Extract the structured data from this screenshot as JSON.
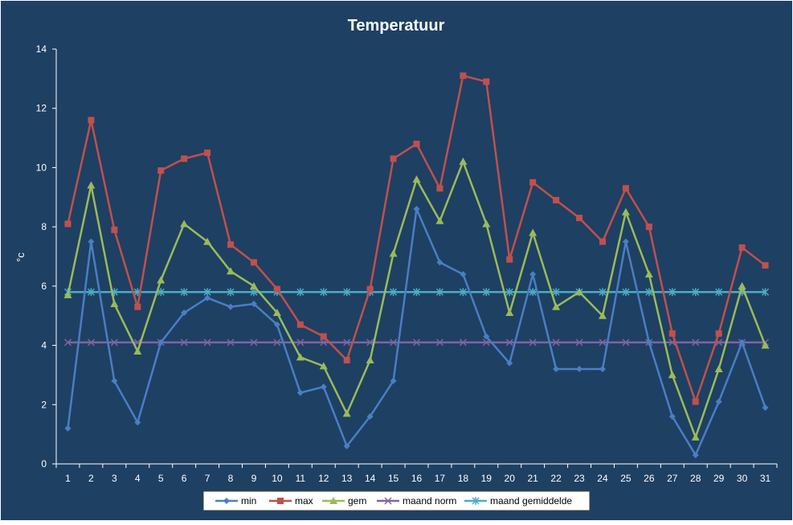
{
  "chart_data": {
    "type": "line",
    "title": "Temperatuur",
    "xlabel": "",
    "ylabel": "°c",
    "ylim": [
      0,
      14
    ],
    "yticks": [
      0,
      2,
      4,
      6,
      8,
      10,
      12,
      14
    ],
    "categories": [
      "1",
      "2",
      "3",
      "4",
      "5",
      "6",
      "7",
      "8",
      "9",
      "10",
      "11",
      "12",
      "13",
      "14",
      "15",
      "16",
      "17",
      "18",
      "19",
      "20",
      "21",
      "22",
      "23",
      "24",
      "25",
      "26",
      "27",
      "28",
      "29",
      "30",
      "31"
    ],
    "legend_position": "bottom",
    "grid": false,
    "colors": {
      "background": "#1e4063",
      "plot_area": "#1e4063",
      "axis": "#ffffff",
      "text": "#ffffff",
      "legend_background": "#ffffff",
      "legend_text": "#000000"
    },
    "series": [
      {
        "name": "min",
        "color": "#4a7ec4",
        "marker": "diamond",
        "values": [
          1.2,
          7.5,
          2.8,
          1.4,
          4.1,
          5.1,
          5.6,
          5.3,
          5.4,
          4.7,
          2.4,
          2.6,
          0.6,
          1.6,
          2.8,
          8.6,
          6.8,
          6.4,
          4.3,
          3.4,
          6.4,
          3.2,
          3.2,
          3.2,
          7.5,
          4.1,
          1.6,
          0.3,
          2.1,
          4.1,
          1.9
        ]
      },
      {
        "name": "max",
        "color": "#c0504d",
        "marker": "square",
        "values": [
          8.1,
          11.6,
          7.9,
          5.3,
          9.9,
          10.3,
          10.5,
          7.4,
          6.8,
          5.9,
          4.7,
          4.3,
          3.5,
          5.9,
          10.3,
          10.8,
          9.3,
          13.1,
          12.9,
          6.9,
          9.5,
          8.9,
          8.3,
          7.5,
          9.3,
          8.0,
          4.4,
          2.1,
          4.4,
          7.3,
          6.7
        ]
      },
      {
        "name": "gem",
        "color": "#9bbb59",
        "marker": "triangle",
        "values": [
          5.7,
          9.4,
          5.4,
          3.8,
          6.2,
          8.1,
          7.5,
          6.5,
          6.0,
          5.1,
          3.6,
          3.3,
          1.7,
          3.5,
          7.1,
          9.6,
          8.2,
          10.2,
          8.1,
          5.1,
          7.8,
          5.3,
          5.8,
          5.0,
          8.5,
          6.4,
          3.0,
          0.9,
          3.2,
          6.0,
          4.0
        ]
      },
      {
        "name": "maand norm",
        "color": "#8064a2",
        "marker": "x",
        "values": [
          4.1,
          4.1,
          4.1,
          4.1,
          4.1,
          4.1,
          4.1,
          4.1,
          4.1,
          4.1,
          4.1,
          4.1,
          4.1,
          4.1,
          4.1,
          4.1,
          4.1,
          4.1,
          4.1,
          4.1,
          4.1,
          4.1,
          4.1,
          4.1,
          4.1,
          4.1,
          4.1,
          4.1,
          4.1,
          4.1,
          4.1
        ]
      },
      {
        "name": "maand gemiddelde",
        "color": "#4bacc6",
        "marker": "star",
        "values": [
          5.8,
          5.8,
          5.8,
          5.8,
          5.8,
          5.8,
          5.8,
          5.8,
          5.8,
          5.8,
          5.8,
          5.8,
          5.8,
          5.8,
          5.8,
          5.8,
          5.8,
          5.8,
          5.8,
          5.8,
          5.8,
          5.8,
          5.8,
          5.8,
          5.8,
          5.8,
          5.8,
          5.8,
          5.8,
          5.8,
          5.8
        ]
      }
    ]
  }
}
